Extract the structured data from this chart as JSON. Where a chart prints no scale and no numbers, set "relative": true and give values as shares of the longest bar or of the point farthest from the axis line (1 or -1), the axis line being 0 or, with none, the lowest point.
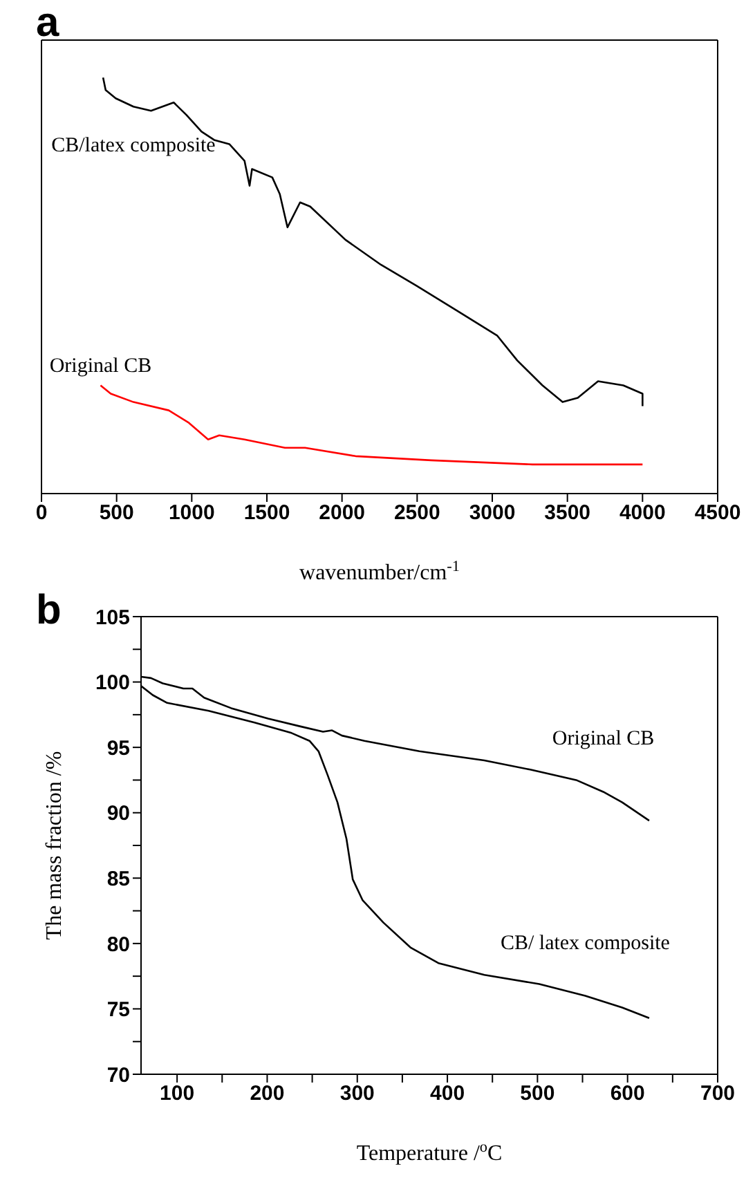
{
  "chart_data": [
    {
      "type": "line",
      "title": "a",
      "xlabel": "wavenumber/cm$^{-1}$",
      "relative": true,
      "xlim": [
        0,
        4500
      ],
      "xticks": [
        0,
        500,
        1000,
        1500,
        2000,
        2500,
        3000,
        3500,
        4000,
        4500
      ],
      "marker": "none",
      "line_style": "solid",
      "series": [
        {
          "name": "CB/latex composite",
          "color": "#000000",
          "x": [
            410,
            427,
            494,
            612,
            729,
            880,
            965,
            1065,
            1149,
            1250,
            1351,
            1385,
            1401,
            1536,
            1586,
            1637,
            1721,
            1788,
            2023,
            2259,
            2494,
            2763,
            3032,
            3166,
            3334,
            3468,
            3569,
            3704,
            3872,
            4000,
            4000
          ],
          "values": [
            1.0,
            0.97,
            0.95,
            0.93,
            0.92,
            0.94,
            0.91,
            0.87,
            0.85,
            0.84,
            0.8,
            0.74,
            0.78,
            0.76,
            0.72,
            0.64,
            0.7,
            0.69,
            0.61,
            0.55,
            0.5,
            0.44,
            0.38,
            0.32,
            0.26,
            0.22,
            0.23,
            0.27,
            0.26,
            0.24,
            0.21
          ]
        },
        {
          "name": "Original CB",
          "color": "#ff0000",
          "x": [
            393,
            461,
            612,
            847,
            981,
            1109,
            1183,
            1351,
            1620,
            1754,
            2090,
            2595,
            3267,
            4000
          ],
          "values": [
            0.26,
            0.24,
            0.22,
            0.2,
            0.17,
            0.13,
            0.14,
            0.13,
            0.11,
            0.11,
            0.09,
            0.08,
            0.07,
            0.07
          ]
        }
      ]
    },
    {
      "type": "line",
      "title": "b",
      "xlabel": "Temperature /$^{o}$C",
      "ylabel": "The mass fraction /%",
      "xlim": [
        60,
        700
      ],
      "ylim": [
        70,
        105
      ],
      "xticks": [
        100,
        {
          "value": 150,
          "label": null
        },
        200,
        {
          "value": 250,
          "label": null
        },
        300,
        {
          "value": 350,
          "label": null
        },
        400,
        {
          "value": 450,
          "label": null
        },
        500,
        {
          "value": 550,
          "label": null
        },
        600,
        {
          "value": 650,
          "label": null
        },
        700
      ],
      "yticks": [
        70,
        {
          "value": 72.5,
          "label": null
        },
        75,
        {
          "value": 77.5,
          "label": null
        },
        80,
        {
          "value": 82.5,
          "label": null
        },
        85,
        {
          "value": 87.5,
          "label": null
        },
        90,
        {
          "value": 92.5,
          "label": null
        },
        95,
        {
          "value": 97.5,
          "label": null
        },
        100,
        {
          "value": 102.5,
          "label": null
        },
        105
      ],
      "marker": "none",
      "line_style": "solid",
      "series": [
        {
          "name": "Original CB",
          "color": "#000000",
          "x": [
            60,
            71,
            84,
            107,
            117,
            130,
            160,
            201,
            237,
            262,
            272,
            283,
            308,
            369,
            441,
            492,
            543,
            573,
            594,
            624
          ],
          "values": [
            100.4,
            100.3,
            99.9,
            99.5,
            99.5,
            98.8,
            98.0,
            97.2,
            96.6,
            96.2,
            96.3,
            95.9,
            95.5,
            94.7,
            94.0,
            93.3,
            92.5,
            91.6,
            90.8,
            89.4
          ]
        },
        {
          "name": "CB/ latex composite",
          "color": "#000000",
          "x": [
            60,
            73,
            89,
            135,
            186,
            227,
            247,
            257,
            267,
            278,
            288,
            295,
            306,
            329,
            359,
            390,
            441,
            502,
            553,
            594,
            624
          ],
          "values": [
            99.7,
            99.0,
            98.4,
            97.8,
            96.9,
            96.1,
            95.5,
            94.7,
            92.9,
            90.8,
            88.0,
            84.9,
            83.3,
            81.6,
            79.7,
            78.5,
            77.6,
            76.9,
            76.0,
            75.1,
            74.3
          ]
        }
      ]
    }
  ]
}
